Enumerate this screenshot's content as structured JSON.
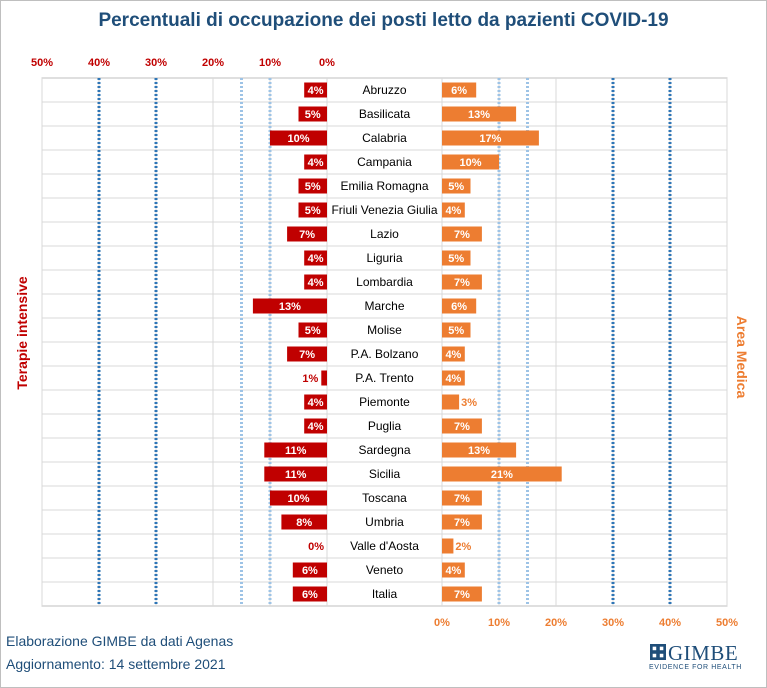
{
  "chart_data": {
    "type": "bar",
    "title": "Percentuali di occupazione dei posti letto da pazienti COVID-19",
    "categories": [
      "Abruzzo",
      "Basilicata",
      "Calabria",
      "Campania",
      "Emilia Romagna",
      "Friuli Venezia Giulia",
      "Lazio",
      "Liguria",
      "Lombardia",
      "Marche",
      "Molise",
      "P.A. Bolzano",
      "P.A. Trento",
      "Piemonte",
      "Puglia",
      "Sardegna",
      "Sicilia",
      "Toscana",
      "Umbria",
      "Valle d'Aosta",
      "Veneto",
      "Italia"
    ],
    "series": [
      {
        "name": "Terapie intensive",
        "color": "#c00000",
        "values": [
          4,
          5,
          10,
          4,
          5,
          5,
          7,
          4,
          4,
          13,
          5,
          7,
          1,
          4,
          4,
          11,
          11,
          10,
          8,
          0,
          6,
          6
        ]
      },
      {
        "name": "Area Medica",
        "color": "#ed7d31",
        "values": [
          6,
          13,
          17,
          10,
          5,
          4,
          7,
          5,
          7,
          6,
          5,
          4,
          4,
          3,
          7,
          13,
          21,
          7,
          7,
          2,
          4,
          7
        ]
      }
    ],
    "left_axis_ticks": [
      "50%",
      "40%",
      "30%",
      "20%",
      "10%",
      "0%"
    ],
    "right_axis_ticks": [
      "0%",
      "10%",
      "20%",
      "30%",
      "40%",
      "50%"
    ],
    "threshold_lines": [
      10,
      15,
      30,
      40
    ],
    "xlim": [
      0,
      50
    ],
    "left_axis_label": "Terapie intensive",
    "right_axis_label": "Area Medica"
  },
  "footer": {
    "source": "Elaborazione GIMBE da dati Agenas",
    "update": "Aggiornamento: 14 settembre 2021"
  },
  "logo": {
    "name": "GIMBE",
    "tagline": "EVIDENCE FOR HEALTH"
  }
}
